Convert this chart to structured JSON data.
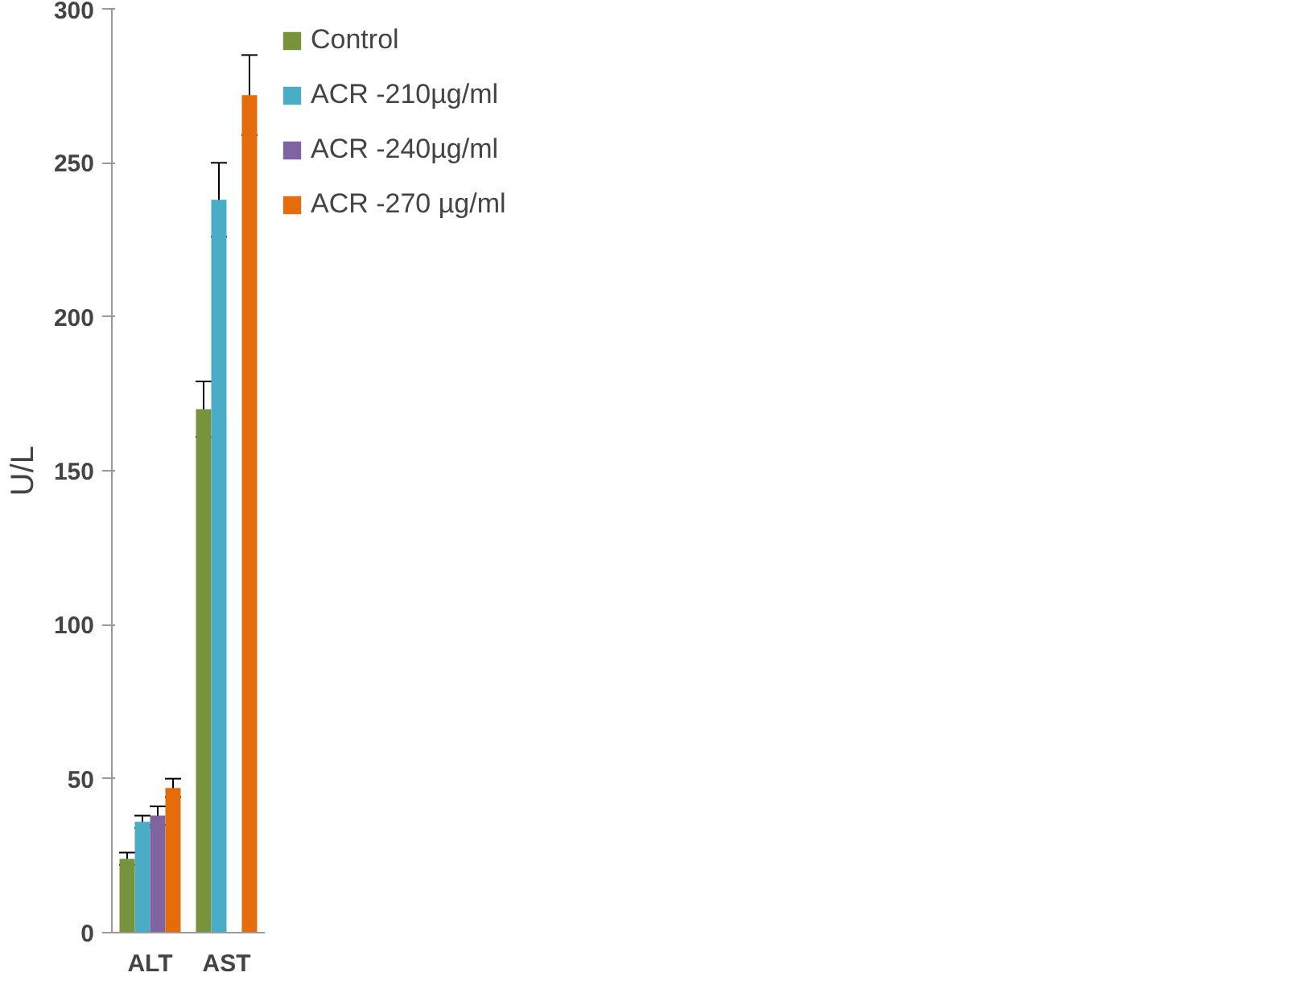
{
  "chart_data": {
    "type": "bar",
    "ylabel": "U/L",
    "categories": [
      "ALT",
      "AST"
    ],
    "series": [
      {
        "name": "Control",
        "color": "#77933c",
        "values": [
          24,
          170
        ],
        "errors": [
          2,
          9
        ]
      },
      {
        "name": "ACR -210µg/ml",
        "color": "#4bacc6",
        "values": [
          36,
          238
        ],
        "errors": [
          2,
          12
        ]
      },
      {
        "name": "ACR -240µg/ml",
        "color": "#8064a2",
        "values": [
          38,
          null
        ],
        "errors": [
          3,
          null
        ]
      },
      {
        "name": "ACR -270 µg/ml",
        "color": "#e46c0a",
        "values": [
          47,
          272
        ],
        "errors": [
          3,
          13
        ]
      }
    ],
    "ylim": [
      0,
      300
    ],
    "yticks": [
      0,
      50,
      100,
      150,
      200,
      250,
      300
    ],
    "grid": false,
    "legend": "right"
  }
}
